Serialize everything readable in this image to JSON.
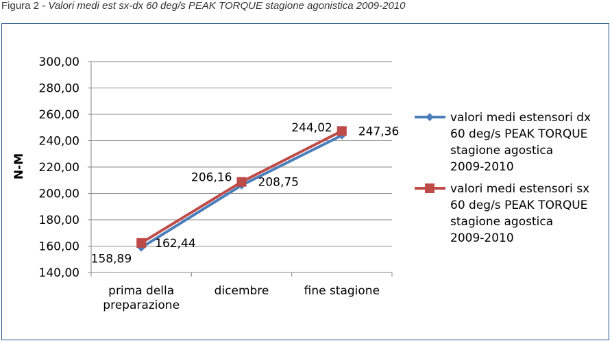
{
  "caption": {
    "prefix": "Figura 2",
    "separator": " - ",
    "title": "Valori medi est sx-dx 60 deg/s PEAK TORQUE stagione agonistica 2009-2010"
  },
  "chart_data": {
    "type": "line",
    "categories": [
      [
        "prima della",
        "preparazione"
      ],
      [
        "dicembre"
      ],
      [
        "fine stagione"
      ]
    ],
    "ylabel": "N-M",
    "ylim": [
      140,
      300
    ],
    "yticks": [
      "140,00",
      "160,00",
      "180,00",
      "200,00",
      "220,00",
      "240,00",
      "260,00",
      "280,00",
      "300,00"
    ],
    "grid": true,
    "legend_position": "right",
    "series": [
      {
        "name_lines": [
          "valori medi estensori dx",
          "60 deg/s PEAK TORQUE",
          "stagione agostica",
          "2009-2010"
        ],
        "values": [
          158.89,
          206.16,
          244.02
        ],
        "labels": [
          "158,89",
          "206,16",
          "244,02"
        ],
        "color": "#4a7ebb",
        "marker": "diamond"
      },
      {
        "name_lines": [
          "valori medi estensori sx",
          "60 deg/s PEAK TORQUE",
          "stagione agostica",
          "2009-2010"
        ],
        "values": [
          162.44,
          208.75,
          247.36
        ],
        "labels": [
          "162,44",
          "208,75",
          "247,36"
        ],
        "color": "#be4b48",
        "marker": "square"
      }
    ]
  }
}
